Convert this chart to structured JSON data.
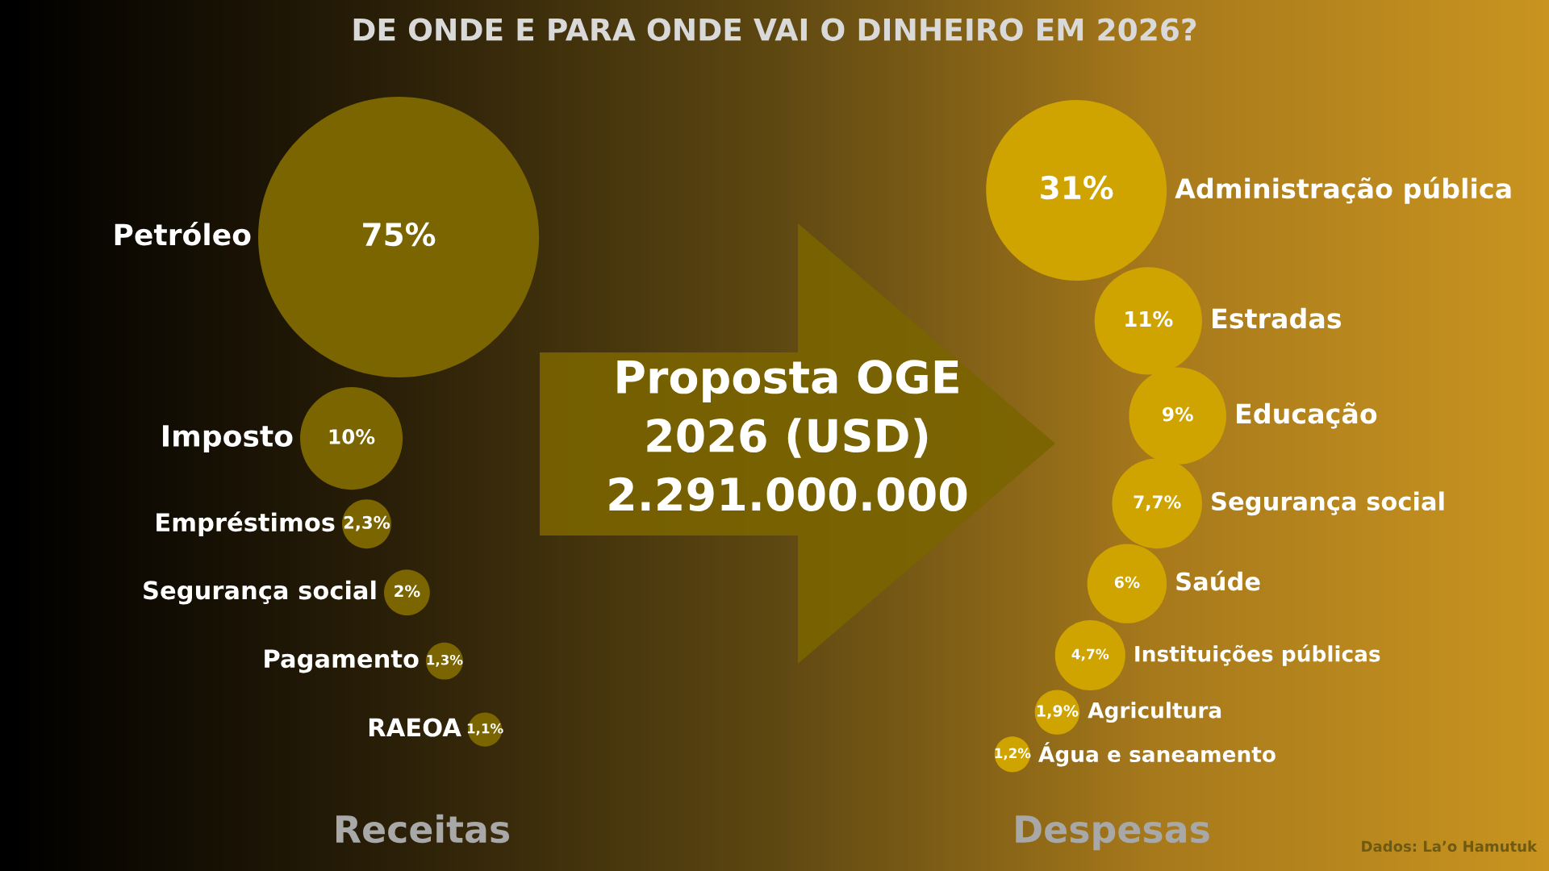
{
  "chart_data": [
    {
      "type": "other",
      "title": "DE ONDE E PARA ONDE VAI O DINHEIRO EM 2026?",
      "xlabel": "Receitas",
      "color": "#7b6500",
      "categories": [
        "Petróleo",
        "Imposto",
        "Empréstimos",
        "Segurança social",
        "Pagamento",
        "RAEOA"
      ],
      "values": [
        75,
        10,
        2.3,
        2,
        1.3,
        1.1
      ],
      "value_labels": [
        "75%",
        "10%",
        "2,3%",
        "2%",
        "1,3%",
        "1,1%"
      ],
      "annotations": [
        "Proposta OGE\n2026 (USD)\n2.291.000.000"
      ]
    },
    {
      "type": "other",
      "xlabel": "Despesas",
      "color": "#d0a400",
      "categories": [
        "Administração pública",
        "Estradas",
        "Educação",
        "Segurança social",
        "Saúde",
        "Instituições públicas",
        "Agricultura",
        "Água e saneamento"
      ],
      "values": [
        31,
        11,
        9,
        7.7,
        6,
        4.7,
        1.9,
        1.2
      ],
      "value_labels": [
        "31%",
        "11%",
        "9%",
        "7,7%",
        "6%",
        "4,7%",
        "1,9%",
        "1,2%"
      ],
      "annotations": [
        "Dados: La’o Hamutuk"
      ]
    }
  ]
}
